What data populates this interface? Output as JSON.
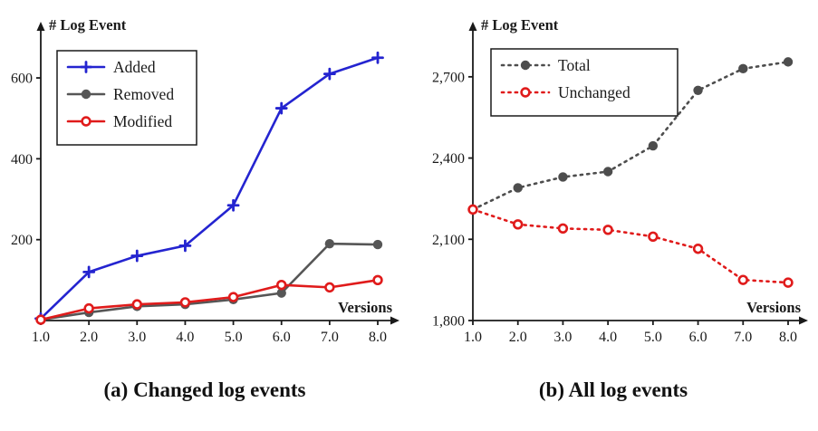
{
  "chart_data": [
    {
      "type": "line",
      "title": "(a) Changed log events",
      "ylabel": "# Log Event",
      "xlabel": "Versions",
      "grid": false,
      "legend_position": "upper-left",
      "x": [
        1.0,
        2.0,
        3.0,
        4.0,
        5.0,
        6.0,
        7.0,
        8.0
      ],
      "x_tick_labels": [
        "1.0",
        "2.0",
        "3.0",
        "4.0",
        "5.0",
        "6.0",
        "7.0",
        "8.0"
      ],
      "ylim": [
        0,
        730
      ],
      "yticks": [
        200,
        400,
        600
      ],
      "ytick_labels": [
        "200",
        "400",
        "600"
      ],
      "series": [
        {
          "name": "Added",
          "color": "#2424d0",
          "marker": "plus",
          "line": "solid",
          "values": [
            5,
            120,
            160,
            185,
            285,
            525,
            610,
            650
          ]
        },
        {
          "name": "Removed",
          "color": "#565656",
          "marker": "filled-circle",
          "line": "solid",
          "values": [
            2,
            20,
            35,
            40,
            52,
            68,
            190,
            188
          ]
        },
        {
          "name": "Modified",
          "color": "#e01b1b",
          "marker": "open-circle",
          "line": "solid",
          "values": [
            2,
            30,
            40,
            45,
            58,
            88,
            82,
            100
          ]
        }
      ]
    },
    {
      "type": "line",
      "title": "(b) All log events",
      "ylabel": "# Log Event",
      "xlabel": "Versions",
      "grid": false,
      "legend_position": "upper-center",
      "x": [
        1.0,
        2.0,
        3.0,
        4.0,
        5.0,
        6.0,
        7.0,
        8.0
      ],
      "x_tick_labels": [
        "1.0",
        "2.0",
        "3.0",
        "4.0",
        "5.0",
        "6.0",
        "7.0",
        "8.0"
      ],
      "ylim": [
        1800,
        2890
      ],
      "yticks": [
        1800,
        2100,
        2400,
        2700
      ],
      "ytick_labels": [
        "1,800",
        "2,100",
        "2,400",
        "2,700"
      ],
      "series": [
        {
          "name": "Total",
          "color": "#4d4d4d",
          "marker": "filled-circle",
          "line": "dotted",
          "values": [
            2210,
            2290,
            2330,
            2350,
            2445,
            2650,
            2730,
            2755
          ]
        },
        {
          "name": "Unchanged",
          "color": "#e01b1b",
          "marker": "open-circle",
          "line": "dotted",
          "values": [
            2210,
            2155,
            2140,
            2135,
            2110,
            2065,
            1950,
            1940
          ]
        }
      ]
    }
  ]
}
